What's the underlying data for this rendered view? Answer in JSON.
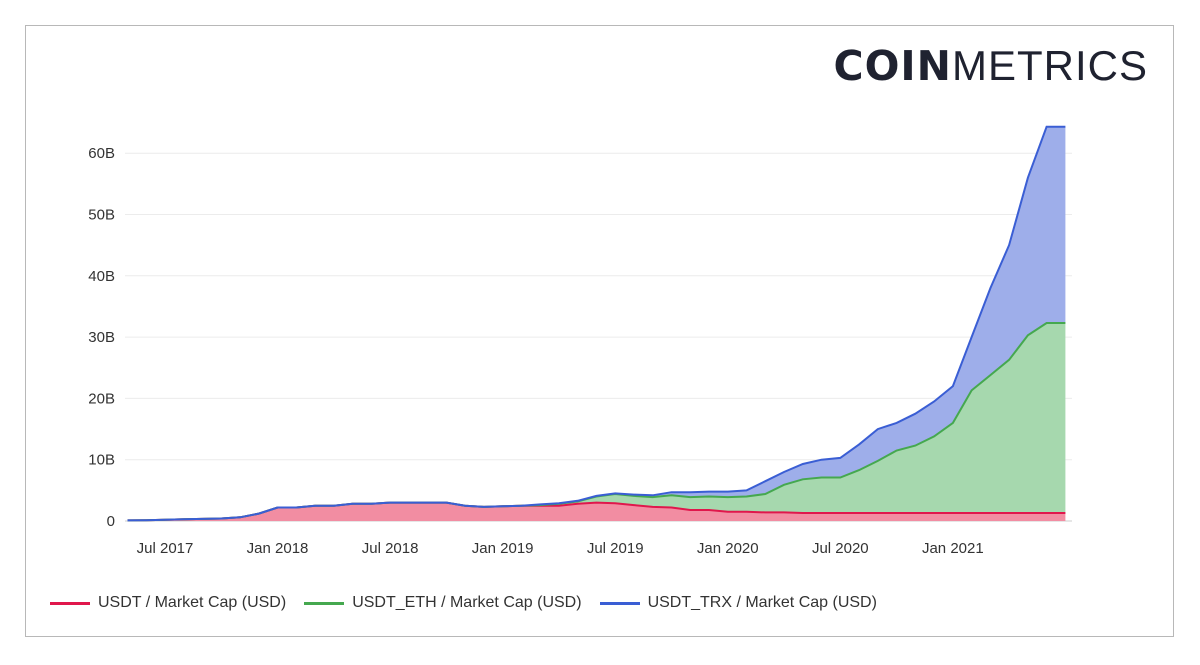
{
  "logo": {
    "bold": "COIN",
    "light": "METRICS"
  },
  "chart_data": {
    "type": "area",
    "stacked": true,
    "title": "",
    "xlabel": "",
    "ylabel": "",
    "ylim": [
      0,
      65
    ],
    "y_unit": "B",
    "y_ticks": [
      {
        "v": 0,
        "label": "0"
      },
      {
        "v": 10,
        "label": "10B"
      },
      {
        "v": 20,
        "label": "20B"
      },
      {
        "v": 30,
        "label": "30B"
      },
      {
        "v": 40,
        "label": "40B"
      },
      {
        "v": 50,
        "label": "50B"
      },
      {
        "v": 60,
        "label": "60B"
      }
    ],
    "x_ticks": [
      {
        "v": "2017-07",
        "label": "Jul 2017"
      },
      {
        "v": "2018-01",
        "label": "Jan 2018"
      },
      {
        "v": "2018-07",
        "label": "Jul 2018"
      },
      {
        "v": "2019-01",
        "label": "Jan 2019"
      },
      {
        "v": "2019-07",
        "label": "Jul 2019"
      },
      {
        "v": "2020-01",
        "label": "Jan 2020"
      },
      {
        "v": "2020-07",
        "label": "Jul 2020"
      },
      {
        "v": "2021-01",
        "label": "Jan 2021"
      }
    ],
    "grid": true,
    "legend_position": "bottom-left",
    "x": [
      "2017-05",
      "2017-06",
      "2017-07",
      "2017-08",
      "2017-09",
      "2017-10",
      "2017-11",
      "2017-12",
      "2018-01",
      "2018-02",
      "2018-03",
      "2018-04",
      "2018-05",
      "2018-06",
      "2018-07",
      "2018-08",
      "2018-09",
      "2018-10",
      "2018-11",
      "2018-12",
      "2019-01",
      "2019-02",
      "2019-03",
      "2019-04",
      "2019-05",
      "2019-06",
      "2019-07",
      "2019-08",
      "2019-09",
      "2019-10",
      "2019-11",
      "2019-12",
      "2020-01",
      "2020-02",
      "2020-03",
      "2020-04",
      "2020-05",
      "2020-06",
      "2020-07",
      "2020-08",
      "2020-09",
      "2020-10",
      "2020-11",
      "2020-12",
      "2021-01",
      "2021-02",
      "2021-03",
      "2021-04",
      "2021-05",
      "2021-06",
      "2021-07"
    ],
    "series": [
      {
        "name": "USDT / Market Cap (USD)",
        "line": "#e0174c",
        "fill": "#f28da2",
        "values": [
          0.1,
          0.12,
          0.2,
          0.3,
          0.35,
          0.4,
          0.6,
          1.2,
          2.2,
          2.2,
          2.5,
          2.5,
          2.8,
          2.8,
          3.0,
          3.0,
          3.0,
          3.0,
          2.5,
          2.3,
          2.4,
          2.5,
          2.5,
          2.5,
          2.8,
          3.0,
          2.9,
          2.6,
          2.3,
          2.2,
          1.8,
          1.8,
          1.5,
          1.5,
          1.4,
          1.4,
          1.3,
          1.3,
          1.3,
          1.3,
          1.3,
          1.3,
          1.3,
          1.3,
          1.3,
          1.3,
          1.3,
          1.3,
          1.3,
          1.3,
          1.3
        ]
      },
      {
        "name": "USDT_ETH / Market Cap (USD)",
        "line": "#45a84f",
        "fill": "#a6d8ae",
        "values": [
          0,
          0,
          0,
          0,
          0,
          0,
          0,
          0,
          0,
          0,
          0,
          0,
          0,
          0,
          0,
          0,
          0,
          0,
          0,
          0,
          0,
          0,
          0.1,
          0.3,
          0.4,
          1.0,
          1.5,
          1.5,
          1.6,
          2.0,
          2.1,
          2.2,
          2.4,
          2.5,
          3.0,
          4.5,
          5.5,
          5.8,
          5.8,
          7.0,
          8.5,
          10.2,
          11.0,
          12.5,
          14.7,
          20.0,
          22.5,
          25.0,
          29.0,
          31.0,
          31.0
        ]
      },
      {
        "name": "USDT_TRX / Market Cap (USD)",
        "line": "#3a5ed4",
        "fill": "#9eaeea",
        "values": [
          0,
          0,
          0,
          0,
          0,
          0,
          0,
          0,
          0,
          0,
          0,
          0,
          0,
          0,
          0,
          0,
          0,
          0,
          0,
          0,
          0,
          0,
          0.1,
          0.1,
          0.1,
          0.1,
          0.1,
          0.2,
          0.3,
          0.5,
          0.8,
          0.8,
          0.9,
          1.0,
          2.1,
          2.1,
          2.5,
          2.9,
          3.2,
          4.2,
          5.2,
          4.5,
          5.2,
          5.7,
          6.0,
          8.7,
          14.2,
          18.7,
          25.7,
          32.0,
          32.0
        ]
      }
    ]
  }
}
